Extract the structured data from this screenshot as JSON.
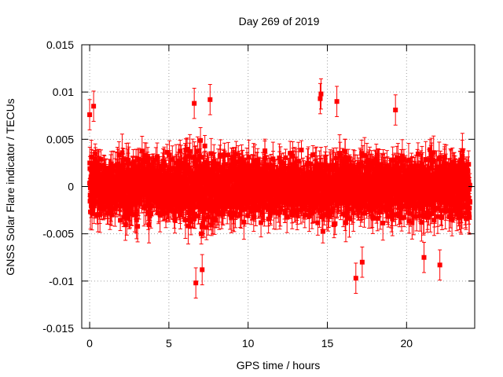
{
  "chart_data": {
    "type": "scatter",
    "title": "Day 269 of 2019",
    "xlabel": "GPS time / hours",
    "ylabel": "GNSS Solar Flare indicator / TECUs",
    "xlim": [
      -0.5,
      24.3
    ],
    "ylim": [
      -0.015,
      0.015
    ],
    "x_ticks": [
      0,
      5,
      10,
      15,
      20
    ],
    "x_tick_labels": [
      "0",
      "5",
      "10",
      "15",
      "20"
    ],
    "y_ticks": [
      -0.015,
      -0.01,
      -0.005,
      0,
      0.005,
      0.01,
      0.015
    ],
    "y_tick_labels": [
      "-0.015",
      "-0.01",
      "-0.005",
      "0",
      "0.005",
      "0.01",
      "0.015"
    ],
    "grid": true,
    "series": [
      {
        "name": "solar flare indicator",
        "color": "#ff0000",
        "marker": "square",
        "error_bars": true,
        "x_start": 0.0,
        "x_end": 24.0,
        "points_approx": 2880,
        "description": "dense noise around 0 with error bars; typical spread about ±0.005 TECU",
        "highlights": [
          {
            "x": 0.0,
            "y": 0.0076
          },
          {
            "x": 0.25,
            "y": 0.0085
          },
          {
            "x": 6.6,
            "y": 0.0088
          },
          {
            "x": 6.7,
            "y": -0.0102
          },
          {
            "x": 7.6,
            "y": 0.0092
          },
          {
            "x": 14.6,
            "y": 0.0098
          },
          {
            "x": 14.55,
            "y": 0.0093
          },
          {
            "x": 15.6,
            "y": 0.009
          },
          {
            "x": 16.8,
            "y": -0.0097
          },
          {
            "x": 7.1,
            "y": -0.0088
          },
          {
            "x": 22.1,
            "y": -0.0083
          },
          {
            "x": 17.2,
            "y": -0.008
          },
          {
            "x": 19.3,
            "y": 0.0081
          },
          {
            "x": 21.1,
            "y": -0.0075
          }
        ]
      }
    ]
  }
}
